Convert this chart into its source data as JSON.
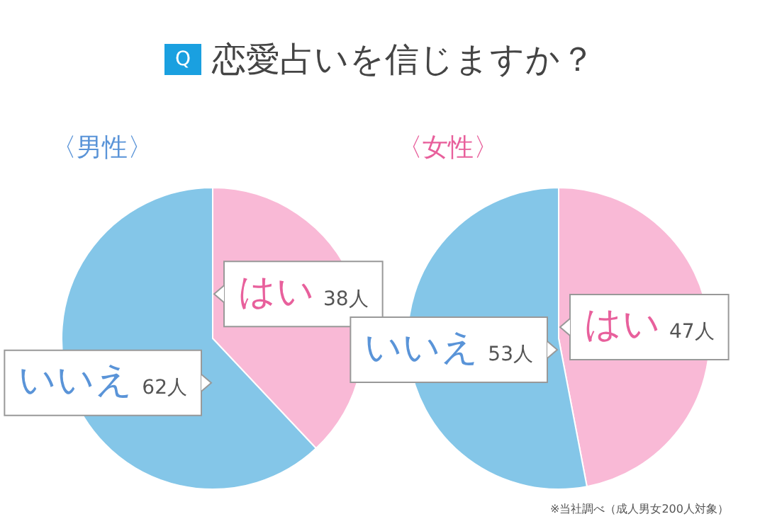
{
  "chart_data": [
    {
      "type": "pie",
      "title": "〈男性〉",
      "annotations": [
        "Q",
        "恋愛占いを信じますか？"
      ],
      "categories": [
        "はい",
        "いいえ"
      ],
      "values": [
        38,
        62
      ],
      "value_labels": [
        "38人",
        "62人"
      ],
      "colors": [
        "#f9b9d6",
        "#84c6e8"
      ]
    },
    {
      "type": "pie",
      "title": "〈女性〉",
      "annotations": [
        "※当社調べ（成人男女200人対象）"
      ],
      "categories": [
        "はい",
        "いいえ"
      ],
      "values": [
        47,
        53
      ],
      "value_labels": [
        "47人",
        "53人"
      ],
      "colors": [
        "#f9b9d6",
        "#84c6e8"
      ]
    }
  ]
}
